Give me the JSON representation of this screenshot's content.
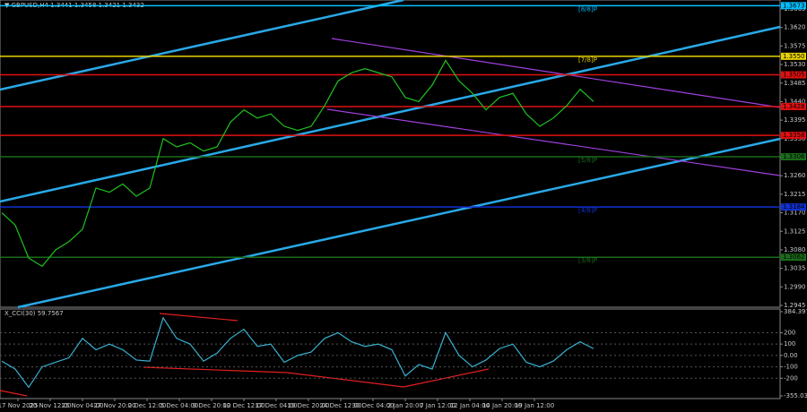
{
  "chart_data": [
    {
      "type": "line",
      "title": "▼ GBPUSD,H4  1.3441 1.3458 1.3421 1.3432",
      "series": [
        {
          "name": "GBPUSD",
          "color": "#1fc21f",
          "values": [
            1.317,
            1.314,
            1.306,
            1.304,
            1.308,
            1.31,
            1.313,
            1.323,
            1.322,
            1.324,
            1.321,
            1.323,
            1.335,
            1.333,
            1.334,
            1.332,
            1.333,
            1.339,
            1.342,
            1.34,
            1.341,
            1.338,
            1.337,
            1.338,
            1.343,
            1.349,
            1.351,
            1.352,
            1.351,
            1.35,
            1.345,
            1.344,
            1.348,
            1.354,
            1.349,
            1.346,
            1.342,
            1.345,
            1.346,
            1.341,
            1.338,
            1.34,
            1.343,
            1.347,
            1.344
          ]
        }
      ],
      "ylim": [
        1.2945,
        1.3665
      ],
      "yticks": [
        1.3665,
        {
          "value": 1.362,
          "label": "1.3620"
        },
        1.3575,
        {
          "value": 1.353,
          "label": "1.3530"
        },
        1.3485,
        {
          "value": 1.344,
          "label": "1.3440"
        },
        1.3395,
        {
          "value": 1.335,
          "label": "1.3350"
        },
        1.3305,
        {
          "value": 1.326,
          "label": "1.3260"
        },
        1.3215,
        {
          "value": 1.317,
          "label": "1.3170"
        },
        1.3125,
        {
          "value": 1.308,
          "label": "1.3080"
        },
        1.3035,
        {
          "value": 1.299,
          "label": "1.2990"
        },
        1.2945
      ],
      "levels": [
        {
          "value": 1.3673,
          "tag": "1.3673",
          "label": "[8/8]P",
          "color": "#00bfff"
        },
        {
          "value": 1.355,
          "tag": "1.3550",
          "label": "[7/8]P",
          "color": "#e8d200"
        },
        {
          "value": 1.3505,
          "tag": "1.3505",
          "color": "#e01010"
        },
        {
          "value": 1.3428,
          "tag": "1.3428",
          "color": "#e01010"
        },
        {
          "value": 1.3358,
          "tag": "1.3358",
          "color": "#e01010"
        },
        {
          "value": 1.3306,
          "tag": "1.3306",
          "label": "[5/8]P",
          "color": "#1a6b1a"
        },
        {
          "value": 1.3184,
          "tag": "1.3184",
          "label": "[4/8]P",
          "color": "#1030d0"
        },
        {
          "value": 1.3062,
          "tag": "1.3062",
          "label": "[3/8]P",
          "color": "#1a6b1a"
        }
      ],
      "grid": false
    },
    {
      "type": "line",
      "title": "X_CCI(30) 59.7567",
      "series": [
        {
          "name": "CCI",
          "color": "#3ab0d0",
          "values": [
            -50,
            -120,
            -280,
            -100,
            -60,
            -20,
            150,
            50,
            100,
            50,
            -40,
            -50,
            330,
            150,
            100,
            -50,
            20,
            150,
            230,
            80,
            100,
            -60,
            0,
            30,
            150,
            200,
            120,
            80,
            100,
            50,
            -180,
            -80,
            -120,
            200,
            0,
            -100,
            -40,
            60,
            100,
            -60,
            -100,
            -50,
            50,
            120,
            60
          ]
        }
      ],
      "ylim": [
        -355.0351,
        384.3971
      ],
      "yticks": [
        384.3971,
        200,
        100,
        {
          "value": 0,
          "label": "0.00"
        },
        -100,
        -200,
        -355.0351
      ]
    },
    {
      "type": "axis",
      "categories": [
        "17 Nov 2025",
        "20 Nov 12:00",
        "25 Nov 04:00",
        "27 Nov 20:00",
        "2 Dec 12:00",
        "5 Dec 04:00",
        "9 Dec 20:00",
        "12 Dec 12:00",
        "17 Dec 04:00",
        "19 Dec 20:00",
        "24 Dec 12:00",
        "30 Dec 04:00",
        "2 Jan 20:00",
        "7 Jan 12:00",
        "12 Jan 04:00",
        "14 Jan 20:00",
        "19 Jan 12:00"
      ]
    }
  ]
}
